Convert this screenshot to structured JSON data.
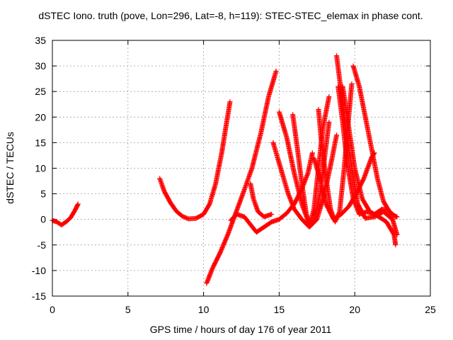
{
  "chart_data": {
    "type": "scatter",
    "title": "dSTEC Iono. truth (pove, Lon=296, Lat=-8, h=119): STEC-STEC_elemax in phase cont.",
    "xlabel": "GPS time / hours of day 176 of year 2011",
    "ylabel": "dSTEC  / TECUs",
    "xlim": [
      0,
      25
    ],
    "ylim": [
      -15,
      35
    ],
    "xticks": [
      0,
      5,
      10,
      15,
      20,
      25
    ],
    "yticks": [
      -15,
      -10,
      -5,
      0,
      5,
      10,
      15,
      20,
      25,
      30,
      35
    ],
    "grid": true,
    "marker": "+",
    "series_color": "#ff0000",
    "arcs": [
      {
        "points": [
          [
            0.0,
            -0.2
          ],
          [
            0.3,
            -0.5
          ],
          [
            0.6,
            -1.1
          ],
          [
            0.9,
            -0.5
          ],
          [
            1.2,
            0.3
          ],
          [
            1.5,
            1.8
          ],
          [
            1.7,
            3.0
          ]
        ]
      },
      {
        "points": [
          [
            7.1,
            8.0
          ],
          [
            7.4,
            5.5
          ],
          [
            7.8,
            3.3
          ],
          [
            8.2,
            1.6
          ],
          [
            8.6,
            0.6
          ],
          [
            9.0,
            0.1
          ],
          [
            9.5,
            0.2
          ],
          [
            10.0,
            1.0
          ],
          [
            10.4,
            3.0
          ],
          [
            10.8,
            7.0
          ],
          [
            11.2,
            13.0
          ],
          [
            11.5,
            18.5
          ],
          [
            11.75,
            23.0
          ]
        ]
      },
      {
        "points": [
          [
            10.2,
            -12.5
          ],
          [
            10.6,
            -9.5
          ],
          [
            11.1,
            -6.5
          ],
          [
            11.6,
            -3.0
          ],
          [
            12.1,
            1.0
          ],
          [
            12.6,
            5.0
          ],
          [
            13.2,
            10.0
          ],
          [
            13.8,
            17.0
          ],
          [
            14.3,
            24.0
          ],
          [
            14.8,
            29.0
          ]
        ]
      },
      {
        "points": [
          [
            11.8,
            -0.2
          ],
          [
            12.2,
            1.0
          ],
          [
            12.7,
            0.5
          ],
          [
            13.1,
            -1.0
          ],
          [
            13.5,
            -2.5
          ],
          [
            14.0,
            -1.5
          ],
          [
            14.5,
            -0.5
          ],
          [
            15.0,
            0.0
          ],
          [
            15.5,
            1.2
          ],
          [
            16.0,
            3.0
          ],
          [
            16.5,
            6.0
          ],
          [
            16.9,
            9.0
          ],
          [
            17.2,
            13.0
          ]
        ]
      },
      {
        "points": [
          [
            13.1,
            7.0
          ],
          [
            13.3,
            4.0
          ],
          [
            13.6,
            1.5
          ],
          [
            14.0,
            0.5
          ],
          [
            14.5,
            1.0
          ]
        ]
      },
      {
        "points": [
          [
            14.6,
            15.0
          ],
          [
            15.1,
            10.0
          ],
          [
            15.6,
            5.0
          ],
          [
            16.0,
            2.0
          ],
          [
            16.5,
            0.0
          ],
          [
            17.0,
            -1.5
          ],
          [
            17.5,
            0.0
          ],
          [
            18.0,
            5.0
          ],
          [
            18.5,
            12.0
          ],
          [
            18.8,
            16.5
          ]
        ]
      },
      {
        "points": [
          [
            15.0,
            21.0
          ],
          [
            15.5,
            16.0
          ],
          [
            16.0,
            9.0
          ],
          [
            16.5,
            3.0
          ],
          [
            17.0,
            -1.0
          ],
          [
            17.3,
            -0.5
          ],
          [
            17.7,
            5.0
          ],
          [
            18.0,
            12.0
          ],
          [
            18.3,
            19.0
          ]
        ]
      },
      {
        "points": [
          [
            15.9,
            20.5
          ],
          [
            16.2,
            14.0
          ],
          [
            16.5,
            7.0
          ],
          [
            16.8,
            1.0
          ],
          [
            17.0,
            -1.2
          ],
          [
            17.3,
            2.0
          ],
          [
            17.6,
            10.0
          ],
          [
            17.9,
            18.0
          ],
          [
            18.3,
            24.0
          ]
        ]
      },
      {
        "points": [
          [
            17.6,
            21.5
          ],
          [
            17.8,
            15.0
          ],
          [
            18.1,
            8.0
          ],
          [
            18.4,
            2.0
          ],
          [
            18.7,
            -0.5
          ],
          [
            19.0,
            1.5
          ],
          [
            19.3,
            10.0
          ],
          [
            19.6,
            20.0
          ],
          [
            19.8,
            26.5
          ]
        ]
      },
      {
        "points": [
          [
            18.8,
            32.0
          ],
          [
            19.1,
            25.0
          ],
          [
            19.4,
            18.0
          ],
          [
            19.8,
            10.0
          ],
          [
            20.2,
            3.0
          ],
          [
            20.7,
            0.2
          ],
          [
            21.3,
            0.5
          ],
          [
            21.9,
            1.5
          ],
          [
            22.5,
            0.0
          ],
          [
            22.8,
            -3.0
          ]
        ]
      },
      {
        "points": [
          [
            19.9,
            30.0
          ],
          [
            20.3,
            26.0
          ],
          [
            20.7,
            20.0
          ],
          [
            21.1,
            14.0
          ],
          [
            21.5,
            8.0
          ],
          [
            21.9,
            3.5
          ],
          [
            22.4,
            1.0
          ],
          [
            22.8,
            0.5
          ]
        ]
      },
      {
        "points": [
          [
            19.2,
            26.0
          ],
          [
            19.6,
            18.0
          ],
          [
            20.0,
            10.0
          ],
          [
            20.5,
            4.0
          ],
          [
            21.0,
            1.5
          ],
          [
            21.6,
            0.5
          ],
          [
            22.1,
            -0.5
          ],
          [
            22.6,
            -3.0
          ],
          [
            22.7,
            -5.0
          ]
        ]
      },
      {
        "points": [
          [
            17.3,
            12.0
          ],
          [
            17.7,
            8.0
          ],
          [
            18.1,
            3.0
          ],
          [
            18.6,
            0.0
          ],
          [
            19.1,
            1.0
          ],
          [
            19.6,
            2.5
          ],
          [
            20.1,
            5.0
          ],
          [
            20.6,
            8.0
          ],
          [
            21.1,
            12.0
          ],
          [
            21.3,
            13.0
          ]
        ]
      },
      {
        "points": [
          [
            18.9,
            26.0
          ],
          [
            19.2,
            19.0
          ],
          [
            19.5,
            11.0
          ],
          [
            19.9,
            4.0
          ],
          [
            20.3,
            1.0
          ],
          [
            20.8,
            1.5
          ],
          [
            21.3,
            1.0
          ],
          [
            21.8,
            2.0
          ],
          [
            22.2,
            1.8
          ],
          [
            22.7,
            0.5
          ]
        ]
      }
    ]
  }
}
